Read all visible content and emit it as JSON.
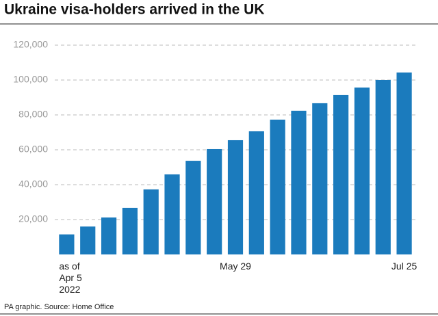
{
  "chart_data": {
    "type": "bar",
    "title": "Ukraine visa-holders arrived in the UK",
    "source": "PA graphic. Source: Home Office",
    "categories": [
      "as of\nApr 5\n2022",
      null,
      null,
      null,
      null,
      null,
      null,
      null,
      "May 29",
      null,
      null,
      null,
      null,
      null,
      null,
      null,
      "Jul 25"
    ],
    "values": [
      11500,
      16000,
      21200,
      26700,
      37300,
      45900,
      53700,
      60400,
      65500,
      70600,
      77300,
      82400,
      86700,
      91400,
      95700,
      100000,
      104300
    ],
    "color": "#1b7bbd",
    "ylim": [
      0,
      120000
    ],
    "yticks": [
      {
        "value": 20000,
        "label": "20,000"
      },
      {
        "value": 40000,
        "label": "40,000"
      },
      {
        "value": 60000,
        "label": "60,000"
      },
      {
        "value": 80000,
        "label": "80,000"
      },
      {
        "value": 100000,
        "label": "100,000"
      },
      {
        "value": 120000,
        "label": "120,000"
      }
    ],
    "grid": true
  }
}
